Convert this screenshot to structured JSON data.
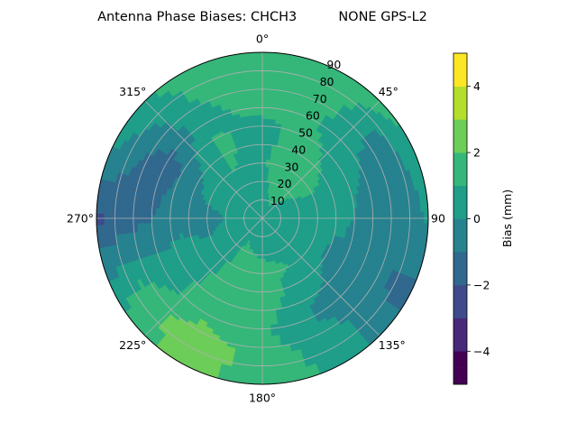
{
  "chart_data": {
    "type": "heatmap",
    "projection": "polar",
    "title": "Antenna Phase Biases: CHCH3          NONE GPS-L2",
    "theta_direction": "clockwise",
    "theta_zero": "top",
    "azimuth_ticks": [
      {
        "value": 0,
        "label": "0°"
      },
      {
        "value": 45,
        "label": "45°"
      },
      {
        "value": 90,
        "label": "90"
      },
      {
        "value": 135,
        "label": "135°"
      },
      {
        "value": 180,
        "label": "180°"
      },
      {
        "value": 225,
        "label": "225°"
      },
      {
        "value": 270,
        "label": "270°"
      },
      {
        "value": 315,
        "label": "315°"
      }
    ],
    "radial_ticks": [
      10,
      20,
      30,
      40,
      50,
      60,
      70,
      80,
      90
    ],
    "radial_label_angle": 22.5,
    "rlim": [
      0,
      90
    ],
    "grid": true,
    "colorbar": {
      "label": "Bias (mm)",
      "range": [
        -5,
        5
      ],
      "levels": [
        -5,
        -4.5,
        -4,
        -3.5,
        -3,
        -2.5,
        -2,
        -1.5,
        -1,
        -0.5,
        0,
        0.5,
        1,
        1.5,
        2,
        2.5,
        3,
        3.5,
        4,
        4.5,
        5
      ],
      "tick_labels": [
        {
          "value": 4,
          "label": "4"
        },
        {
          "value": 2,
          "label": "2"
        },
        {
          "value": 0,
          "label": "0"
        },
        {
          "value": -2,
          "label": "−2"
        },
        {
          "value": -4,
          "label": "−4"
        }
      ],
      "colormap": [
        "#440154",
        "#482878",
        "#3e4a89",
        "#31688e",
        "#26828e",
        "#1f9e89",
        "#35b779",
        "#6dcd59",
        "#b4de2c",
        "#fde725"
      ]
    },
    "field": {
      "description_units": "Bias (mm) as function of azimuth (deg) and zenith distance (deg)",
      "azimuth": [
        0,
        30,
        60,
        90,
        120,
        150,
        180,
        210,
        240,
        270,
        300,
        330
      ],
      "radius": [
        0,
        15,
        30,
        45,
        60,
        75,
        90
      ],
      "values": [
        [
          0.5,
          0.6,
          0.8,
          0.6,
          1.2,
          1.4,
          1.6
        ],
        [
          0.5,
          1.5,
          2.0,
          1.5,
          1.0,
          1.5,
          1.8
        ],
        [
          0.5,
          0.8,
          1.2,
          0.5,
          0.0,
          -0.6,
          1.0
        ],
        [
          0.5,
          0.3,
          0.0,
          0.2,
          -0.5,
          -1.0,
          0.2
        ],
        [
          0.5,
          0.6,
          0.3,
          -0.3,
          -0.6,
          -1.0,
          -1.4
        ],
        [
          0.5,
          0.8,
          1.0,
          0.3,
          -0.2,
          0.5,
          0.9
        ],
        [
          0.5,
          0.8,
          1.2,
          1.6,
          1.2,
          1.5,
          1.3
        ],
        [
          0.5,
          1.0,
          1.3,
          1.4,
          1.6,
          2.8,
          2.5
        ],
        [
          0.5,
          0.6,
          0.2,
          0.6,
          0.6,
          1.2,
          0.8
        ],
        [
          0.5,
          0.2,
          -0.4,
          -0.4,
          -1.0,
          -1.6,
          -2.2
        ],
        [
          0.5,
          0.6,
          0.5,
          -0.7,
          -1.6,
          -0.8,
          0.5
        ],
        [
          0.5,
          0.6,
          1.0,
          1.2,
          0.8,
          1.0,
          1.4
        ]
      ]
    }
  }
}
